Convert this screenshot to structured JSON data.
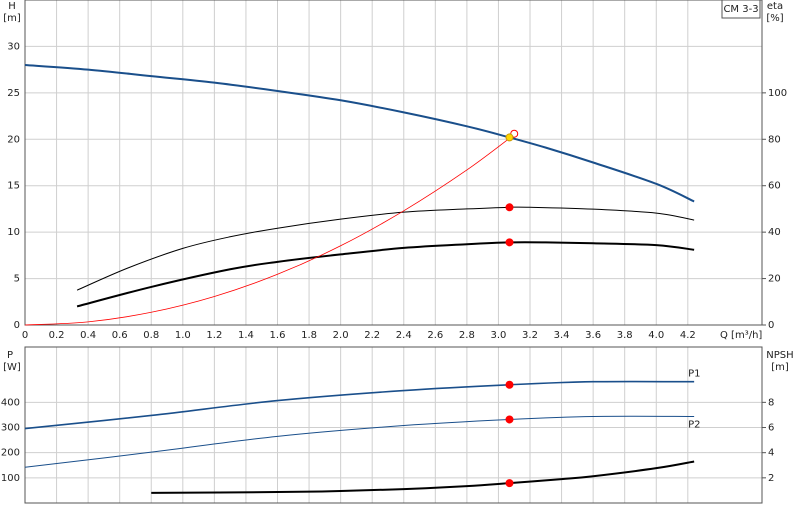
{
  "chart_data": [
    {
      "type": "line",
      "title": "CM 3-3",
      "y_label": "H",
      "y_unit": "[m]",
      "y2_label": "eta",
      "y2_unit": "[%]",
      "x_label": "Q [m³/h]",
      "xlim": [
        0,
        4.67
      ],
      "xticks": [
        0,
        0.2,
        0.4,
        0.6,
        0.8,
        {
          "value": 1,
          "label": "1.0"
        },
        1.2,
        1.4,
        1.6,
        1.8,
        {
          "value": 2,
          "label": "2.0"
        },
        2.2,
        2.4,
        2.6,
        2.8,
        {
          "value": 3,
          "label": "3.0"
        },
        3.2,
        3.4,
        3.6,
        3.8,
        {
          "value": 4,
          "label": "4.0"
        },
        4.2
      ],
      "ylim": [
        0,
        35
      ],
      "yticks": [
        0,
        5,
        10,
        15,
        20,
        25,
        30
      ],
      "y2lim": [
        0,
        140
      ],
      "y2ticks": [
        0,
        20,
        40,
        60,
        80,
        100
      ],
      "grid": true,
      "series": [
        {
          "color": "#1a4f8b",
          "line_width": 2,
          "x": [
            0,
            0.4,
            0.8,
            1.2,
            1.6,
            2.0,
            2.4,
            2.8,
            3.07,
            3.3,
            3.6,
            4.0,
            4.24
          ],
          "values": [
            28,
            27.5,
            26.8,
            26.1,
            25.2,
            24.2,
            22.9,
            21.4,
            20.2,
            19.1,
            17.5,
            15.2,
            13.3
          ]
        },
        {
          "color": "#000000",
          "line_width": 1,
          "axis": "y2",
          "x": [
            0.33,
            0.65,
            1.0,
            1.3,
            1.6,
            2.0,
            2.4,
            2.8,
            3.07,
            3.2,
            3.6,
            4.0,
            4.24
          ],
          "values": [
            15,
            24.5,
            33,
            38,
            41.7,
            45.6,
            48.6,
            50,
            50.7,
            50.7,
            49.9,
            48.2,
            45.2
          ]
        },
        {
          "color": "#000000",
          "line_width": 2,
          "axis": "y2",
          "x": [
            0.33,
            0.8,
            1.3,
            1.6,
            2.0,
            2.4,
            2.8,
            3.07,
            3.3,
            3.6,
            4.0,
            4.24
          ],
          "values": [
            8,
            16.4,
            24,
            27.2,
            30.4,
            33.2,
            34.8,
            35.6,
            35.6,
            35.2,
            34.4,
            32.4
          ]
        },
        {
          "color": "#ff0000",
          "line_width": 0.8,
          "x": [
            0,
            0.4,
            0.8,
            1.2,
            1.6,
            2.0,
            2.4,
            2.8,
            3.1
          ],
          "values": [
            0,
            0.34,
            1.37,
            3.07,
            5.46,
            8.53,
            12.3,
            16.7,
            20.5
          ]
        }
      ],
      "markers": [
        {
          "x": 3.1,
          "value": 20.6,
          "color": "#ffffff",
          "stroke": "#ff0000"
        },
        {
          "x": 3.07,
          "value": 20.2,
          "color": "#ffd700",
          "stroke": "#cc9900"
        },
        {
          "x": 3.07,
          "value": 50.7,
          "color": "#ff0000",
          "axis": "y2"
        },
        {
          "x": 3.07,
          "value": 35.6,
          "color": "#ff0000",
          "axis": "y2"
        }
      ]
    },
    {
      "type": "line",
      "y_label": "P",
      "y_unit": "[W]",
      "y2_label": "NPSH",
      "y2_unit": "[m]",
      "xlim": [
        0,
        4.67
      ],
      "xticks": [
        0,
        0.2,
        0.4,
        0.6,
        0.8,
        1,
        1.2,
        1.4,
        1.6,
        1.8,
        2,
        2.2,
        2.4,
        2.6,
        2.8,
        3,
        3.2,
        3.4,
        3.6,
        3.8,
        4,
        4.2
      ],
      "ylim": [
        0,
        620
      ],
      "yticks": [
        100,
        200,
        300,
        400
      ],
      "y2lim": [
        0,
        12.4
      ],
      "y2ticks": [
        2,
        4,
        6,
        8
      ],
      "grid": true,
      "series": [
        {
          "name": "P1",
          "color": "#1a4f8b",
          "line_width": 1.6,
          "x": [
            0,
            0.8,
            1.6,
            2.4,
            3.07,
            3.6,
            4.24
          ],
          "values": [
            296,
            348,
            407,
            447,
            470,
            482,
            482
          ]
        },
        {
          "name": "P2",
          "color": "#1a4f8b",
          "line_width": 1,
          "x": [
            0,
            0.8,
            1.6,
            2.4,
            3.07,
            3.6,
            4.24
          ],
          "values": [
            142,
            202,
            265,
            308,
            332,
            344,
            344
          ]
        },
        {
          "color": "#000000",
          "line_width": 2,
          "axis": "y2",
          "x": [
            0.8,
            1.6,
            2.0,
            2.4,
            2.8,
            3.07,
            3.4,
            3.6,
            4.0,
            4.24
          ],
          "values": [
            0.8,
            0.87,
            0.95,
            1.1,
            1.34,
            1.58,
            1.9,
            2.13,
            2.77,
            3.3
          ]
        }
      ],
      "markers": [
        {
          "x": 3.07,
          "value": 470,
          "color": "#ff0000"
        },
        {
          "x": 3.07,
          "value": 332,
          "color": "#ff0000"
        },
        {
          "x": 3.07,
          "value": 1.58,
          "color": "#ff0000",
          "axis": "y2"
        }
      ]
    }
  ]
}
